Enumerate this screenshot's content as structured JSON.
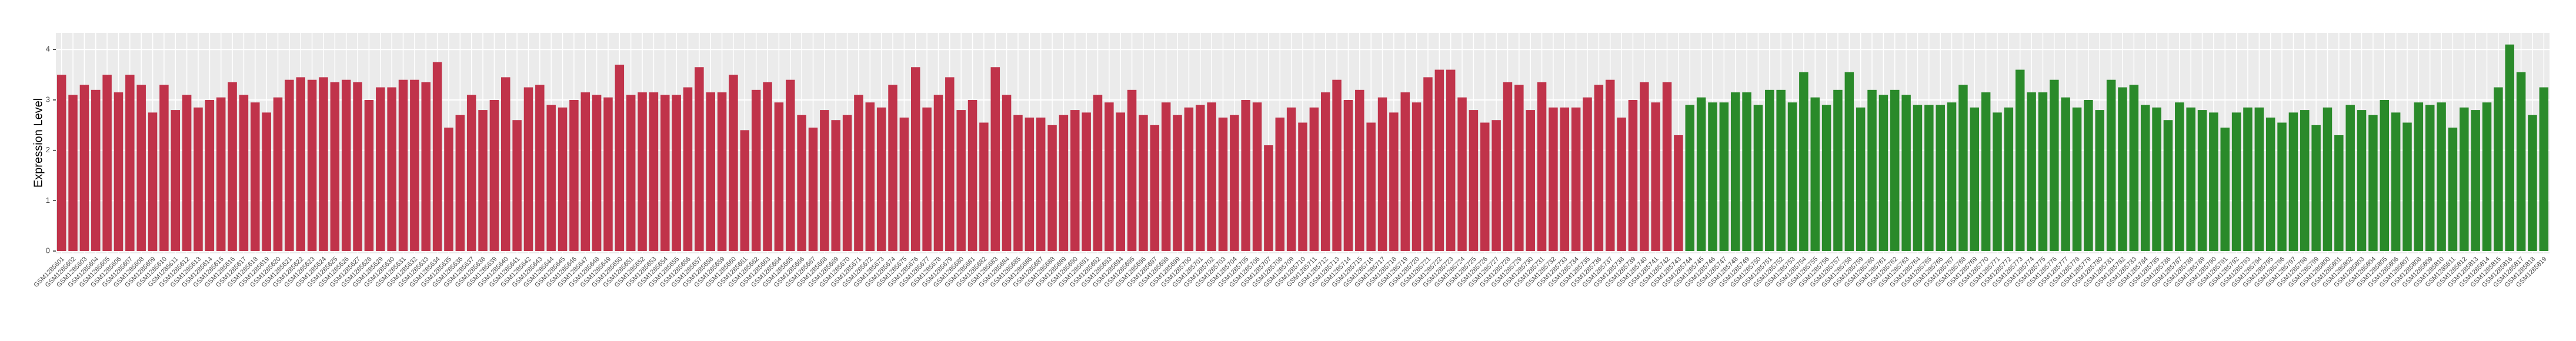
{
  "chart_data": {
    "type": "bar",
    "y_label": "Expression Level",
    "categories": [
      "GSM1285601",
      "GSM1285602",
      "GSM1285603",
      "GSM1285604",
      "GSM1285605",
      "GSM1285606",
      "GSM1285607",
      "GSM1285608",
      "GSM1285609",
      "GSM1285610",
      "GSM1285611",
      "GSM1285612",
      "GSM1285613",
      "GSM1285614",
      "GSM1285615",
      "GSM1285616",
      "GSM1285617",
      "GSM1285618",
      "GSM1285619",
      "GSM1285620",
      "GSM1285621",
      "GSM1285622",
      "GSM1285623",
      "GSM1285624",
      "GSM1285625",
      "GSM1285626",
      "GSM1285627",
      "GSM1285628",
      "GSM1285629",
      "GSM1285630",
      "GSM1285631",
      "GSM1285632",
      "GSM1285633",
      "GSM1285634",
      "GSM1285635",
      "GSM1285636",
      "GSM1285637",
      "GSM1285638",
      "GSM1285639",
      "GSM1285640",
      "GSM1285641",
      "GSM1285642",
      "GSM1285643",
      "GSM1285644",
      "GSM1285645",
      "GSM1285646",
      "GSM1285647",
      "GSM1285648",
      "GSM1285649",
      "GSM1285650",
      "GSM1285651",
      "GSM1285652",
      "GSM1285653",
      "GSM1285654",
      "GSM1285655",
      "GSM1285656",
      "GSM1285657",
      "GSM1285658",
      "GSM1285659",
      "GSM1285660",
      "GSM1285661",
      "GSM1285662",
      "GSM1285663",
      "GSM1285664",
      "GSM1285665",
      "GSM1285666",
      "GSM1285667",
      "GSM1285668",
      "GSM1285669",
      "GSM1285670",
      "GSM1285671",
      "GSM1285672",
      "GSM1285673",
      "GSM1285674",
      "GSM1285675",
      "GSM1285676",
      "GSM1285677",
      "GSM1285678",
      "GSM1285679",
      "GSM1285680",
      "GSM1285681",
      "GSM1285682",
      "GSM1285683",
      "GSM1285684",
      "GSM1285685",
      "GSM1285686",
      "GSM1285687",
      "GSM1285688",
      "GSM1285689",
      "GSM1285690",
      "GSM1285691",
      "GSM1285692",
      "GSM1285693",
      "GSM1285694",
      "GSM1285695",
      "GSM1285696",
      "GSM1285697",
      "GSM1285698",
      "GSM1285699",
      "GSM1285700",
      "GSM1285701",
      "GSM1285702",
      "GSM1285703",
      "GSM1285704",
      "GSM1285705",
      "GSM1285706",
      "GSM1285707",
      "GSM1285708",
      "GSM1285709",
      "GSM1285710",
      "GSM1285711",
      "GSM1285712",
      "GSM1285713",
      "GSM1285714",
      "GSM1285715",
      "GSM1285716",
      "GSM1285717",
      "GSM1285718",
      "GSM1285719",
      "GSM1285720",
      "GSM1285721",
      "GSM1285722",
      "GSM1285723",
      "GSM1285724",
      "GSM1285725",
      "GSM1285726",
      "GSM1285727",
      "GSM1285728",
      "GSM1285729",
      "GSM1285730",
      "GSM1285731",
      "GSM1285732",
      "GSM1285733",
      "GSM1285734",
      "GSM1285735",
      "GSM1285736",
      "GSM1285737",
      "GSM1285738",
      "GSM1285739",
      "GSM1285740",
      "GSM1285741",
      "GSM1285742",
      "GSM1285743",
      "GSM1285744",
      "GSM1285745",
      "GSM1285746",
      "GSM1285747",
      "GSM1285748",
      "GSM1285749",
      "GSM1285750",
      "GSM1285751",
      "GSM1285752",
      "GSM1285753",
      "GSM1285754",
      "GSM1285755",
      "GSM1285756",
      "GSM1285757",
      "GSM1285758",
      "GSM1285759",
      "GSM1285760",
      "GSM1285761",
      "GSM1285762",
      "GSM1285763",
      "GSM1285764",
      "GSM1285765",
      "GSM1285766",
      "GSM1285767",
      "GSM1285768",
      "GSM1285769",
      "GSM1285770",
      "GSM1285771",
      "GSM1285772",
      "GSM1285773",
      "GSM1285774",
      "GSM1285775",
      "GSM1285776",
      "GSM1285777",
      "GSM1285778",
      "GSM1285779",
      "GSM1285780",
      "GSM1285781",
      "GSM1285782",
      "GSM1285783",
      "GSM1285784",
      "GSM1285785",
      "GSM1285786",
      "GSM1285787",
      "GSM1285788",
      "GSM1285789",
      "GSM1285790",
      "GSM1285791",
      "GSM1285792",
      "GSM1285793",
      "GSM1285794",
      "GSM1285795",
      "GSM1285796",
      "GSM1285797",
      "GSM1285798",
      "GSM1285799",
      "GSM1285800",
      "GSM1285801",
      "GSM1285802",
      "GSM1285803",
      "GSM1285804",
      "GSM1285805",
      "GSM1285806",
      "GSM1285807",
      "GSM1285808",
      "GSM1285809",
      "GSM1285810",
      "GSM1285811",
      "GSM1285812",
      "GSM1285813",
      "GSM1285814",
      "GSM1285815",
      "GSM1285816",
      "GSM1285817",
      "GSM1285818",
      "GSM1285819"
    ],
    "values": [
      3.5,
      3.1,
      3.3,
      3.2,
      3.5,
      3.15,
      3.5,
      3.3,
      2.75,
      3.3,
      2.8,
      3.1,
      2.85,
      3.0,
      3.05,
      3.35,
      3.1,
      2.95,
      2.75,
      3.05,
      3.4,
      3.45,
      3.4,
      3.45,
      3.35,
      3.4,
      3.35,
      3.0,
      3.25,
      3.25,
      3.4,
      3.4,
      3.35,
      3.75,
      2.45,
      2.7,
      3.1,
      2.8,
      3.0,
      3.45,
      2.6,
      3.25,
      3.3,
      2.9,
      2.85,
      3.0,
      3.15,
      3.1,
      3.05,
      3.7,
      3.1,
      3.15,
      3.15,
      3.1,
      3.1,
      3.25,
      3.65,
      3.15,
      3.15,
      3.5,
      2.4,
      3.2,
      3.35,
      2.95,
      3.4,
      2.7,
      2.45,
      2.8,
      2.6,
      2.7,
      3.1,
      2.95,
      2.85,
      3.3,
      2.65,
      3.65,
      2.85,
      3.1,
      3.45,
      2.8,
      3.0,
      2.55,
      3.65,
      3.1,
      2.7,
      2.65,
      2.65,
      2.5,
      2.7,
      2.8,
      2.75,
      3.1,
      2.95,
      2.75,
      3.2,
      2.7,
      2.5,
      2.95,
      2.7,
      2.85,
      2.9,
      2.95,
      2.65,
      2.7,
      3.0,
      2.95,
      2.1,
      2.65,
      2.85,
      2.55,
      2.85,
      3.15,
      3.4,
      3.0,
      3.2,
      2.55,
      3.05,
      2.75,
      3.15,
      2.95,
      3.45,
      3.6,
      3.6,
      3.05,
      2.8,
      2.55,
      2.6,
      3.35,
      3.3,
      2.8,
      3.35,
      2.85,
      2.85,
      2.85,
      3.05,
      3.3,
      3.4,
      2.65,
      3.0,
      3.35,
      2.95,
      3.35,
      2.3,
      2.9,
      3.05,
      2.95,
      2.95,
      3.15,
      3.15,
      2.9,
      3.2,
      3.2,
      2.95,
      3.55,
      3.05,
      2.9,
      3.2,
      3.55,
      2.85,
      3.2,
      3.1,
      3.2,
      3.1,
      2.9,
      2.9,
      2.9,
      2.95,
      3.3,
      2.85,
      3.15,
      2.75,
      2.85,
      3.6,
      3.15,
      3.15,
      3.4,
      3.05,
      2.85,
      3.0,
      2.8,
      3.4,
      3.25,
      3.3,
      2.9,
      2.85,
      2.6,
      2.95,
      2.85,
      2.8,
      2.75,
      2.45,
      2.75,
      2.85,
      2.85,
      2.65,
      2.55,
      2.75,
      2.8,
      2.5,
      2.85,
      2.3,
      2.9,
      2.8,
      2.7,
      3.0,
      2.75,
      2.55,
      2.95,
      2.9,
      2.95,
      2.45,
      2.85,
      2.8,
      2.95,
      3.25,
      4.1,
      3.55,
      2.7,
      3.25
    ],
    "colors": [
      "#c0334a",
      "#c0334a",
      "#c0334a",
      "#c0334a",
      "#c0334a",
      "#c0334a",
      "#c0334a",
      "#c0334a",
      "#c0334a",
      "#c0334a",
      "#c0334a",
      "#c0334a",
      "#c0334a",
      "#c0334a",
      "#c0334a",
      "#c0334a",
      "#c0334a",
      "#c0334a",
      "#c0334a",
      "#c0334a",
      "#c0334a",
      "#c0334a",
      "#c0334a",
      "#c0334a",
      "#c0334a",
      "#c0334a",
      "#c0334a",
      "#c0334a",
      "#c0334a",
      "#c0334a",
      "#c0334a",
      "#c0334a",
      "#c0334a",
      "#c0334a",
      "#c0334a",
      "#c0334a",
      "#c0334a",
      "#c0334a",
      "#c0334a",
      "#c0334a",
      "#c0334a",
      "#c0334a",
      "#c0334a",
      "#c0334a",
      "#c0334a",
      "#c0334a",
      "#c0334a",
      "#c0334a",
      "#c0334a",
      "#c0334a",
      "#c0334a",
      "#c0334a",
      "#c0334a",
      "#c0334a",
      "#c0334a",
      "#c0334a",
      "#c0334a",
      "#c0334a",
      "#c0334a",
      "#c0334a",
      "#c0334a",
      "#c0334a",
      "#c0334a",
      "#c0334a",
      "#c0334a",
      "#c0334a",
      "#c0334a",
      "#c0334a",
      "#c0334a",
      "#c0334a",
      "#c0334a",
      "#c0334a",
      "#c0334a",
      "#c0334a",
      "#c0334a",
      "#c0334a",
      "#c0334a",
      "#c0334a",
      "#c0334a",
      "#c0334a",
      "#c0334a",
      "#c0334a",
      "#c0334a",
      "#c0334a",
      "#c0334a",
      "#c0334a",
      "#c0334a",
      "#c0334a",
      "#c0334a",
      "#c0334a",
      "#c0334a",
      "#c0334a",
      "#c0334a",
      "#c0334a",
      "#c0334a",
      "#c0334a",
      "#c0334a",
      "#c0334a",
      "#c0334a",
      "#c0334a",
      "#c0334a",
      "#c0334a",
      "#c0334a",
      "#c0334a",
      "#c0334a",
      "#c0334a",
      "#c0334a",
      "#c0334a",
      "#c0334a",
      "#c0334a",
      "#c0334a",
      "#c0334a",
      "#c0334a",
      "#c0334a",
      "#c0334a",
      "#c0334a",
      "#c0334a",
      "#c0334a",
      "#c0334a",
      "#c0334a",
      "#c0334a",
      "#c0334a",
      "#c0334a",
      "#c0334a",
      "#c0334a",
      "#c0334a",
      "#c0334a",
      "#c0334a",
      "#c0334a",
      "#c0334a",
      "#c0334a",
      "#c0334a",
      "#c0334a",
      "#c0334a",
      "#c0334a",
      "#c0334a",
      "#c0334a",
      "#c0334a",
      "#c0334a",
      "#c0334a",
      "#c0334a",
      "#c0334a",
      "#c0334a",
      "#2a8a2a",
      "#2a8a2a",
      "#2a8a2a",
      "#2a8a2a",
      "#2a8a2a",
      "#2a8a2a",
      "#2a8a2a",
      "#2a8a2a",
      "#2a8a2a",
      "#2a8a2a",
      "#2a8a2a",
      "#2a8a2a",
      "#2a8a2a",
      "#2a8a2a",
      "#2a8a2a",
      "#2a8a2a",
      "#2a8a2a",
      "#2a8a2a",
      "#2a8a2a",
      "#2a8a2a",
      "#2a8a2a",
      "#2a8a2a",
      "#2a8a2a",
      "#2a8a2a",
      "#2a8a2a",
      "#2a8a2a",
      "#2a8a2a",
      "#2a8a2a",
      "#2a8a2a",
      "#2a8a2a",
      "#2a8a2a",
      "#2a8a2a",
      "#2a8a2a",
      "#2a8a2a",
      "#2a8a2a",
      "#2a8a2a",
      "#2a8a2a",
      "#2a8a2a",
      "#2a8a2a",
      "#2a8a2a",
      "#2a8a2a",
      "#2a8a2a",
      "#2a8a2a",
      "#2a8a2a",
      "#2a8a2a",
      "#2a8a2a",
      "#2a8a2a",
      "#2a8a2a",
      "#2a8a2a",
      "#2a8a2a",
      "#2a8a2a",
      "#2a8a2a",
      "#2a8a2a",
      "#2a8a2a",
      "#2a8a2a",
      "#2a8a2a",
      "#2a8a2a",
      "#2a8a2a",
      "#2a8a2a",
      "#2a8a2a",
      "#2a8a2a",
      "#2a8a2a",
      "#2a8a2a",
      "#2a8a2a",
      "#2a8a2a",
      "#2a8a2a",
      "#2a8a2a",
      "#2a8a2a",
      "#2a8a2a",
      "#2a8a2a",
      "#2a8a2a",
      "#2a8a2a",
      "#2a8a2a",
      "#2a8a2a",
      "#2a8a2a",
      "#2a8a2a"
    ],
    "ylim": [
      0,
      4.33
    ],
    "yticks": [
      0,
      1,
      2,
      3,
      4
    ],
    "grid": true
  }
}
